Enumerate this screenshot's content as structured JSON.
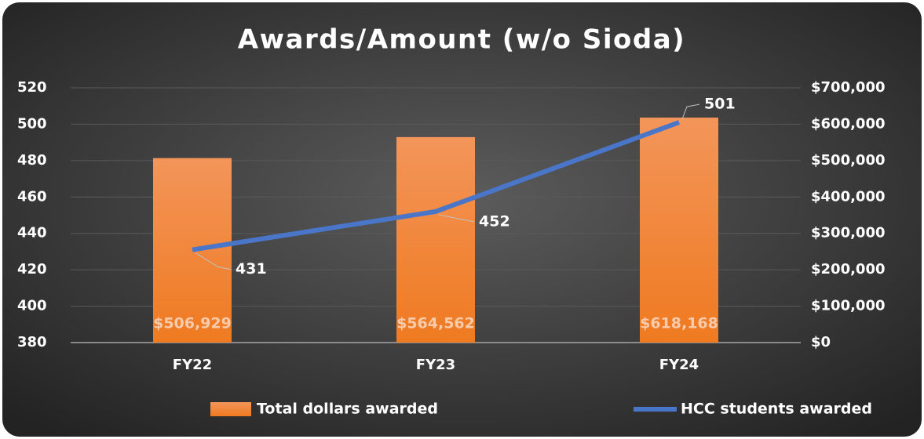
{
  "chart_data": {
    "type": "combo",
    "title": "Awards/Amount (w/o Sioda)",
    "categories": [
      "FY22",
      "FY23",
      "FY24"
    ],
    "series": [
      {
        "name": "Total dollars awarded",
        "type": "bar",
        "axis": "y2",
        "color": "#f07d2a",
        "values": [
          506929,
          564562,
          618168
        ],
        "value_labels": [
          "$506,929",
          "$564,562",
          "$618,168"
        ]
      },
      {
        "name": "HCC students awarded",
        "type": "line",
        "axis": "y",
        "color": "#4a76c9",
        "values": [
          431,
          452,
          501
        ]
      }
    ],
    "ylim": [
      380,
      520
    ],
    "yticks": [
      380,
      400,
      420,
      440,
      460,
      480,
      500,
      520
    ],
    "y2lim": [
      0,
      700000
    ],
    "y2ticks": [
      {
        "value": 0,
        "label": "$0"
      },
      {
        "value": 100000,
        "label": "$100,000"
      },
      {
        "value": 200000,
        "label": "$200,000"
      },
      {
        "value": 300000,
        "label": "$300,000"
      },
      {
        "value": 400000,
        "label": "$400,000"
      },
      {
        "value": 500000,
        "label": "$500,000"
      },
      {
        "value": 600000,
        "label": "$600,000"
      },
      {
        "value": 700000,
        "label": "$700,000"
      }
    ],
    "grid": true,
    "legend": "bottom"
  }
}
